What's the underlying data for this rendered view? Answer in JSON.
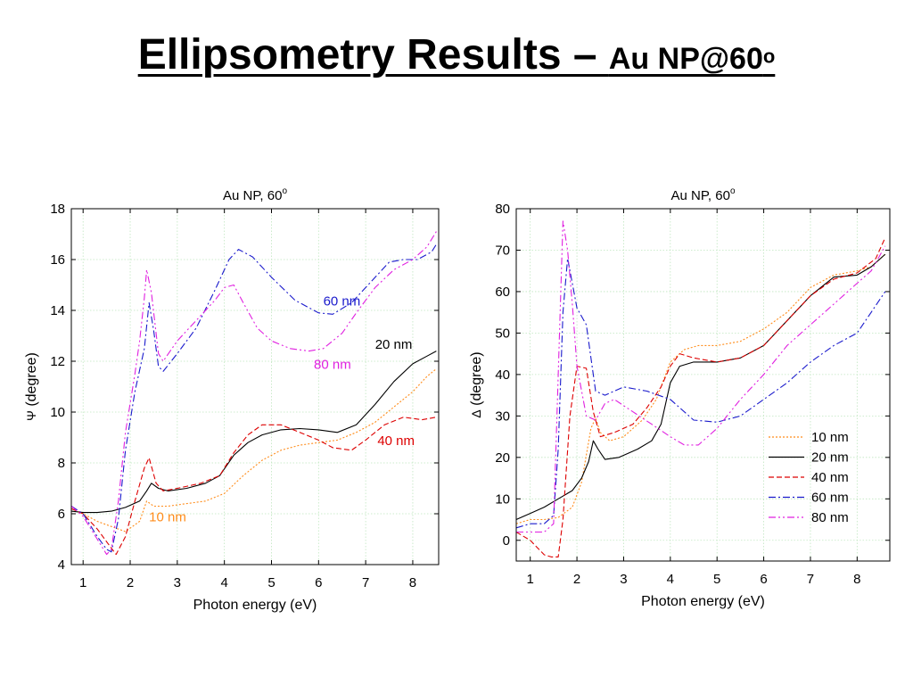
{
  "slide": {
    "title_main": "Ellipsometry Results – ",
    "title_sub": "Au NP@60",
    "title_sup": "o"
  },
  "chart_data": [
    {
      "type": "line",
      "title": "Au NP, 60",
      "title_sup": "o",
      "xlabel": "Photon energy (eV)",
      "ylabel_symbol": "Ψ",
      "ylabel": " (degree)",
      "xlim": [
        0.75,
        8.55
      ],
      "ylim": [
        4,
        18
      ],
      "xticks": [
        1,
        2,
        3,
        4,
        5,
        6,
        7,
        8
      ],
      "yticks": [
        4,
        6,
        8,
        10,
        12,
        14,
        16,
        18
      ],
      "grid": true,
      "legend": "none",
      "annotations": [
        {
          "text": "60 nm",
          "series": "60 nm",
          "x": 6.1,
          "y": 14.2
        },
        {
          "text": "20 nm",
          "series": "20 nm",
          "x": 7.2,
          "y": 12.5
        },
        {
          "text": "80 nm",
          "series": "80 nm",
          "x": 5.9,
          "y": 11.7
        },
        {
          "text": "40 nm",
          "series": "40 nm",
          "x": 7.25,
          "y": 8.7
        },
        {
          "text": "10 nm",
          "series": "10 nm",
          "x": 2.4,
          "y": 5.7
        }
      ],
      "series": [
        {
          "name": "10 nm",
          "color": "#ff8c1a",
          "dash": "2,2",
          "x": [
            0.75,
            1.0,
            1.3,
            1.6,
            1.9,
            2.2,
            2.35,
            2.5,
            2.8,
            3.2,
            3.6,
            4.0,
            4.4,
            4.8,
            5.2,
            5.6,
            6.0,
            6.4,
            6.8,
            7.2,
            7.6,
            8.0,
            8.3,
            8.5
          ],
          "y": [
            6.2,
            6.0,
            5.7,
            5.5,
            5.3,
            5.7,
            6.5,
            6.3,
            6.3,
            6.4,
            6.5,
            6.8,
            7.5,
            8.1,
            8.5,
            8.7,
            8.8,
            8.9,
            9.2,
            9.6,
            10.2,
            10.8,
            11.4,
            11.7
          ]
        },
        {
          "name": "20 nm",
          "color": "#000000",
          "dash": "",
          "x": [
            0.75,
            1.0,
            1.3,
            1.6,
            1.9,
            2.2,
            2.35,
            2.45,
            2.6,
            2.8,
            3.2,
            3.6,
            3.9,
            4.2,
            4.5,
            4.8,
            5.2,
            5.6,
            6.0,
            6.4,
            6.8,
            7.2,
            7.6,
            8.0,
            8.3,
            8.5
          ],
          "y": [
            6.1,
            6.05,
            6.05,
            6.1,
            6.25,
            6.5,
            6.9,
            7.2,
            7.0,
            6.9,
            7.0,
            7.2,
            7.5,
            8.3,
            8.8,
            9.1,
            9.3,
            9.35,
            9.3,
            9.2,
            9.5,
            10.3,
            11.2,
            11.9,
            12.2,
            12.4
          ]
        },
        {
          "name": "40 nm",
          "color": "#dd0000",
          "dash": "6,3",
          "x": [
            0.75,
            1.0,
            1.3,
            1.5,
            1.7,
            1.9,
            2.1,
            2.3,
            2.4,
            2.55,
            2.7,
            3.0,
            3.5,
            3.9,
            4.2,
            4.5,
            4.8,
            5.2,
            5.6,
            6.0,
            6.3,
            6.7,
            7.0,
            7.4,
            7.8,
            8.2,
            8.5
          ],
          "y": [
            6.2,
            6.0,
            5.4,
            4.9,
            4.4,
            5.1,
            6.5,
            7.8,
            8.2,
            7.2,
            6.9,
            7.0,
            7.2,
            7.5,
            8.4,
            9.1,
            9.5,
            9.5,
            9.2,
            8.9,
            8.6,
            8.5,
            8.9,
            9.5,
            9.8,
            9.7,
            9.8
          ]
        },
        {
          "name": "60 nm",
          "color": "#1a1acc",
          "dash": "8,3,2,3",
          "x": [
            0.75,
            1.0,
            1.3,
            1.5,
            1.6,
            1.75,
            1.9,
            2.1,
            2.3,
            2.4,
            2.5,
            2.6,
            2.7,
            3.0,
            3.4,
            3.8,
            4.1,
            4.3,
            4.6,
            5.0,
            5.5,
            6.0,
            6.3,
            6.7,
            7.1,
            7.5,
            7.8,
            8.1,
            8.4,
            8.5
          ],
          "y": [
            6.3,
            6.0,
            5.1,
            4.6,
            4.5,
            5.8,
            8.5,
            10.8,
            12.5,
            14.3,
            13.2,
            11.8,
            11.6,
            12.3,
            13.3,
            14.8,
            16.0,
            16.4,
            16.1,
            15.3,
            14.4,
            13.9,
            13.85,
            14.3,
            15.1,
            15.9,
            16.0,
            16.0,
            16.3,
            16.6
          ]
        },
        {
          "name": "80 nm",
          "color": "#e020e0",
          "dash": "8,3,2,3,2,3",
          "x": [
            0.75,
            1.0,
            1.3,
            1.5,
            1.6,
            1.75,
            1.9,
            2.1,
            2.2,
            2.3,
            2.35,
            2.45,
            2.6,
            2.7,
            3.0,
            3.4,
            3.8,
            4.0,
            4.2,
            4.4,
            4.7,
            5.0,
            5.4,
            5.8,
            6.1,
            6.5,
            6.8,
            7.2,
            7.6,
            8.0,
            8.3,
            8.5
          ],
          "y": [
            6.3,
            5.9,
            5.0,
            4.4,
            4.6,
            6.5,
            9.2,
            11.5,
            12.8,
            14.5,
            15.6,
            14.7,
            12.3,
            12.0,
            12.8,
            13.6,
            14.4,
            14.9,
            15.0,
            14.3,
            13.3,
            12.8,
            12.5,
            12.4,
            12.5,
            13.1,
            13.9,
            14.9,
            15.6,
            16.0,
            16.5,
            17.1
          ]
        }
      ]
    },
    {
      "type": "line",
      "title": "Au NP, 60",
      "title_sup": "o",
      "xlabel": "Photon energy (eV)",
      "ylabel_symbol": "Δ",
      "ylabel": " (degree)",
      "xlim": [
        0.7,
        8.7
      ],
      "ylim": [
        -5,
        80
      ],
      "xticks": [
        1,
        2,
        3,
        4,
        5,
        6,
        7,
        8
      ],
      "yticks": [
        0,
        10,
        20,
        30,
        40,
        50,
        60,
        70,
        80
      ],
      "grid": true,
      "legend": "bottom-right",
      "series": [
        {
          "name": "10 nm",
          "color": "#ff8c1a",
          "dash": "2,2",
          "x": [
            0.7,
            1.0,
            1.3,
            1.6,
            1.9,
            2.1,
            2.3,
            2.4,
            2.5,
            2.7,
            3.0,
            3.4,
            3.7,
            4.0,
            4.3,
            4.6,
            5.0,
            5.5,
            6.0,
            6.5,
            7.0,
            7.5,
            8.0,
            8.3,
            8.6
          ],
          "y": [
            4,
            5,
            5,
            5.5,
            8,
            14,
            27,
            29.5,
            26,
            24,
            25,
            29,
            34,
            43,
            46,
            47,
            47,
            48,
            51,
            55,
            61,
            64,
            65,
            66,
            69
          ]
        },
        {
          "name": "20 nm",
          "color": "#000000",
          "dash": "",
          "x": [
            0.7,
            1.0,
            1.3,
            1.6,
            1.9,
            2.1,
            2.25,
            2.35,
            2.45,
            2.6,
            2.9,
            3.3,
            3.6,
            3.8,
            4.0,
            4.2,
            4.5,
            5.0,
            5.5,
            6.0,
            6.5,
            7.0,
            7.5,
            8.0,
            8.3,
            8.6
          ],
          "y": [
            5,
            6.5,
            8,
            10,
            12,
            15,
            19,
            24,
            22,
            19.5,
            20,
            22,
            24,
            28,
            38,
            42,
            43,
            43,
            44,
            47,
            53,
            59,
            63.5,
            64,
            66,
            69
          ]
        },
        {
          "name": "40 nm",
          "color": "#dd0000",
          "dash": "6,3",
          "x": [
            0.7,
            1.0,
            1.3,
            1.45,
            1.6,
            1.7,
            1.85,
            2.0,
            2.2,
            2.35,
            2.5,
            2.8,
            3.2,
            3.5,
            3.8,
            4.0,
            4.2,
            4.5,
            5.0,
            5.5,
            6.0,
            6.5,
            7.0,
            7.5,
            8.0,
            8.4,
            8.6
          ],
          "y": [
            2,
            0,
            -3.5,
            -4,
            -4,
            5,
            30,
            42,
            41.5,
            31,
            25,
            26,
            28,
            32,
            37,
            42,
            45,
            44,
            43,
            44,
            47,
            53,
            59,
            63,
            64.5,
            68,
            73
          ]
        },
        {
          "name": "60 nm",
          "color": "#1a1acc",
          "dash": "8,3,2,3",
          "x": [
            0.7,
            1.0,
            1.3,
            1.5,
            1.6,
            1.7,
            1.8,
            1.9,
            2.0,
            2.2,
            2.4,
            2.6,
            3.0,
            3.5,
            4.0,
            4.5,
            5.0,
            5.5,
            6.0,
            6.5,
            7.0,
            7.5,
            8.0,
            8.3,
            8.6
          ],
          "y": [
            3,
            4,
            4,
            6,
            22,
            55,
            68,
            62,
            56,
            52,
            36,
            35,
            37,
            36,
            34,
            29,
            28.5,
            30,
            34,
            38,
            43,
            47,
            50,
            55,
            60
          ]
        },
        {
          "name": "80 nm",
          "color": "#e020e0",
          "dash": "8,3,2,3,2,3",
          "x": [
            0.7,
            1.0,
            1.3,
            1.5,
            1.6,
            1.7,
            1.8,
            1.9,
            2.0,
            2.2,
            2.4,
            2.6,
            2.8,
            3.2,
            3.6,
            4.0,
            4.3,
            4.6,
            5.0,
            5.5,
            6.0,
            6.5,
            7.0,
            7.5,
            8.0,
            8.3,
            8.6
          ],
          "y": [
            2,
            2,
            2,
            4,
            40,
            77,
            70,
            57,
            42,
            30,
            29,
            33,
            34,
            31,
            28,
            25,
            23,
            23,
            27,
            34,
            40,
            47,
            52,
            57,
            62,
            65,
            71
          ]
        }
      ]
    }
  ]
}
